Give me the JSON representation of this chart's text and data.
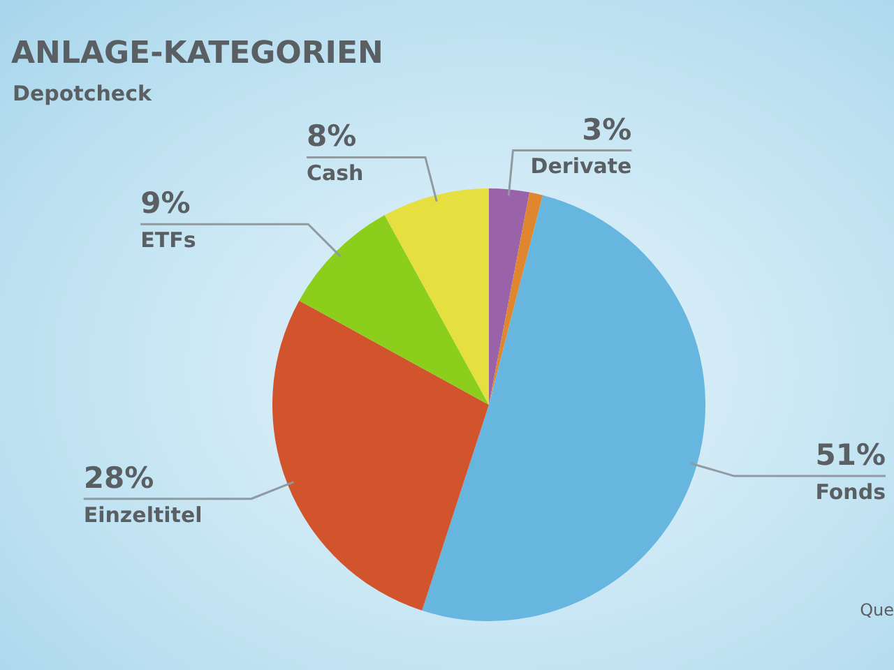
{
  "chart_data": {
    "type": "pie",
    "title": "ANLAGE-KATEGORIEN",
    "subtitle": "Depotcheck",
    "categories": [
      "Derivate",
      null,
      "Fonds",
      "Einzeltitel",
      "ETFs",
      "Cash"
    ],
    "values": [
      3,
      1,
      51,
      28,
      9,
      8
    ],
    "colors": [
      "#9a62a8",
      "#e0862e",
      "#66b6df",
      "#d1542c",
      "#8bcf1c",
      "#e6df40"
    ],
    "value_labels": [
      "3%",
      null,
      "51%",
      "28%",
      "9%",
      "8%"
    ],
    "annotations": [
      "Que"
    ],
    "legend": false
  }
}
